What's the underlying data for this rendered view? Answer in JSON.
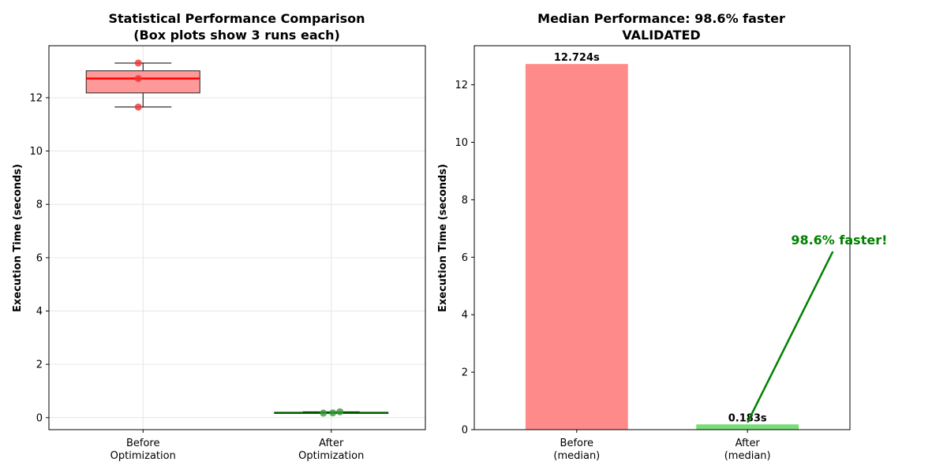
{
  "chart_data": [
    {
      "type": "box",
      "title": "Statistical Performance Comparison",
      "subtitle": "(Box plots show 3 runs each)",
      "ylabel": "Execution Time (seconds)",
      "ylim": [
        -0.45,
        13.95
      ],
      "yticks": [
        0,
        2,
        4,
        6,
        8,
        10,
        12
      ],
      "grid": true,
      "categories": [
        "Before\nOptimization",
        "After\nOptimization"
      ],
      "series": [
        {
          "box_color": "#ff9999",
          "line_color": "#ff0000",
          "point_color": "#ee3333",
          "points": [
            13.3,
            12.72,
            11.65
          ],
          "q1": 12.18,
          "median": 12.72,
          "q3": 13.01,
          "whisker_low": 11.65,
          "whisker_high": 13.3
        },
        {
          "box_color": "#90ee90",
          "line_color": "#006400",
          "point_color": "#3a9a3a",
          "points": [
            0.17,
            0.18,
            0.22
          ],
          "q1": 0.175,
          "median": 0.183,
          "q3": 0.2,
          "whisker_low": 0.17,
          "whisker_high": 0.22
        }
      ]
    },
    {
      "type": "bar",
      "title": "Median Performance: 98.6% faster",
      "subtitle": "VALIDATED",
      "ylabel": "Execution Time (seconds)",
      "ylim": [
        0,
        13.36
      ],
      "yticks": [
        0,
        2,
        4,
        6,
        8,
        10,
        12
      ],
      "grid": false,
      "categories": [
        "Before\n(median)",
        "After\n(median)"
      ],
      "values": [
        12.724,
        0.183
      ],
      "value_labels": [
        "12.724s",
        "0.183s"
      ],
      "colors": [
        "#ff8a8a",
        "#77dd77"
      ],
      "annotation": {
        "text": "98.6% faster!",
        "color": "#008000",
        "from": [
          1.5,
          6.2
        ],
        "to": [
          1.0,
          0.25
        ]
      }
    }
  ]
}
